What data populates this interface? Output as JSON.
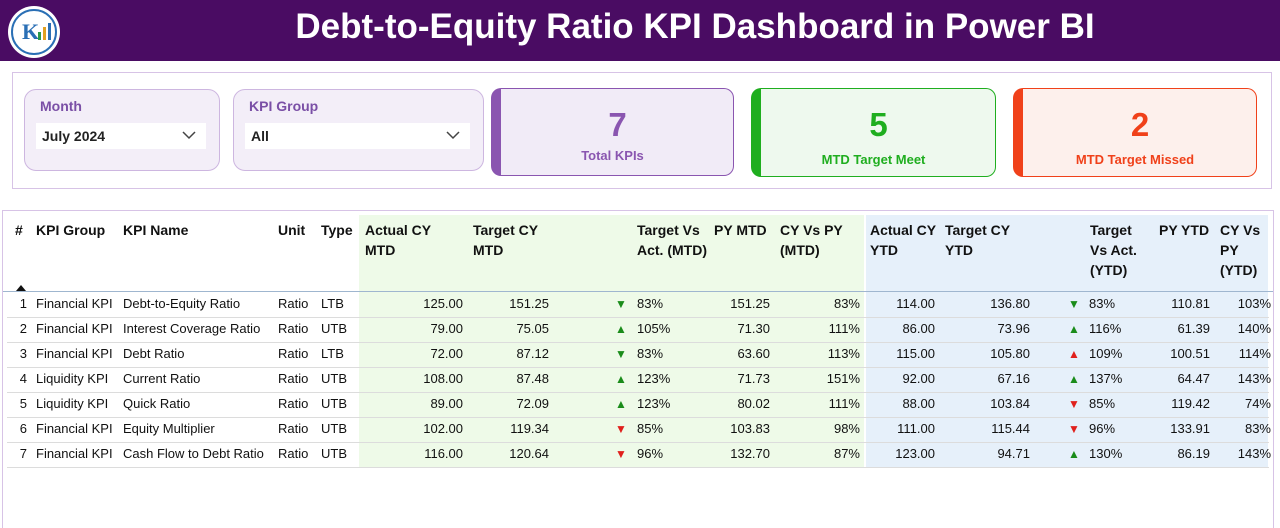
{
  "header": {
    "title": "Debt-to-Equity Ratio KPI Dashboard in Power BI"
  },
  "slicers": [
    {
      "label": "Month",
      "value": "July 2024"
    },
    {
      "label": "KPI Group",
      "value": "All"
    }
  ],
  "cards": [
    {
      "value": 7,
      "label": "Total KPIs",
      "color": "#8a55b0",
      "background": "#f1ebf7"
    },
    {
      "value": 5,
      "label": "MTD Target Meet",
      "color": "#1fae1f",
      "background": "#eef9ee"
    },
    {
      "value": 2,
      "label": "MTD Target Missed",
      "color": "#f0411a",
      "background": "#fdf0ec"
    }
  ],
  "table": {
    "columns": [
      "#",
      "KPI Group",
      "KPI Name",
      "Unit",
      "Type",
      "Actual CY MTD",
      "Target CY MTD",
      "Target Vs Act. (MTD)",
      "PY MTD",
      "CY Vs PY (MTD)",
      "Actual CY YTD",
      "Target CY YTD",
      "Target Vs Act. (YTD)",
      "PY YTD",
      "CY Vs PY (YTD)"
    ],
    "rows": [
      {
        "cells": [
          "1",
          "Financial KPI",
          "Debt-to-Equity Ratio",
          "Ratio",
          "LTB",
          "125.00",
          "151.25",
          "83%",
          "151.25",
          "83%",
          "114.00",
          "136.80",
          "83%",
          "110.81",
          "103%"
        ],
        "mtd_icon": {
          "symbol": "▼",
          "color": "#1a8c1a"
        },
        "ytd_icon": {
          "symbol": "▼",
          "color": "#1a8c1a"
        }
      },
      {
        "cells": [
          "2",
          "Financial KPI",
          "Interest Coverage Ratio",
          "Ratio",
          "UTB",
          "79.00",
          "75.05",
          "105%",
          "71.30",
          "111%",
          "86.00",
          "73.96",
          "116%",
          "61.39",
          "140%"
        ],
        "mtd_icon": {
          "symbol": "▲",
          "color": "#1a8c1a"
        },
        "ytd_icon": {
          "symbol": "▲",
          "color": "#1a8c1a"
        }
      },
      {
        "cells": [
          "3",
          "Financial KPI",
          "Debt Ratio",
          "Ratio",
          "LTB",
          "72.00",
          "87.12",
          "83%",
          "63.60",
          "113%",
          "115.00",
          "105.80",
          "109%",
          "100.51",
          "114%"
        ],
        "mtd_icon": {
          "symbol": "▼",
          "color": "#1a8c1a"
        },
        "ytd_icon": {
          "symbol": "▲",
          "color": "#e0201c"
        }
      },
      {
        "cells": [
          "4",
          "Liquidity KPI",
          "Current Ratio",
          "Ratio",
          "UTB",
          "108.00",
          "87.48",
          "123%",
          "71.73",
          "151%",
          "92.00",
          "67.16",
          "137%",
          "64.47",
          "143%"
        ],
        "mtd_icon": {
          "symbol": "▲",
          "color": "#1a8c1a"
        },
        "ytd_icon": {
          "symbol": "▲",
          "color": "#1a8c1a"
        }
      },
      {
        "cells": [
          "5",
          "Liquidity KPI",
          "Quick Ratio",
          "Ratio",
          "UTB",
          "89.00",
          "72.09",
          "123%",
          "80.02",
          "111%",
          "88.00",
          "103.84",
          "85%",
          "119.42",
          "74%"
        ],
        "mtd_icon": {
          "symbol": "▲",
          "color": "#1a8c1a"
        },
        "ytd_icon": {
          "symbol": "▼",
          "color": "#e0201c"
        }
      },
      {
        "cells": [
          "6",
          "Financial KPI",
          "Equity Multiplier",
          "Ratio",
          "UTB",
          "102.00",
          "119.34",
          "85%",
          "103.83",
          "98%",
          "111.00",
          "115.44",
          "96%",
          "133.91",
          "83%"
        ],
        "mtd_icon": {
          "symbol": "▼",
          "color": "#e0201c"
        },
        "ytd_icon": {
          "symbol": "▼",
          "color": "#e0201c"
        }
      },
      {
        "cells": [
          "7",
          "Financial KPI",
          "Cash Flow to Debt Ratio",
          "Ratio",
          "UTB",
          "116.00",
          "120.64",
          "96%",
          "132.70",
          "87%",
          "123.00",
          "94.71",
          "130%",
          "86.19",
          "143%"
        ],
        "mtd_icon": {
          "symbol": "▼",
          "color": "#e0201c"
        },
        "ytd_icon": {
          "symbol": "▲",
          "color": "#1a8c1a"
        }
      }
    ]
  }
}
